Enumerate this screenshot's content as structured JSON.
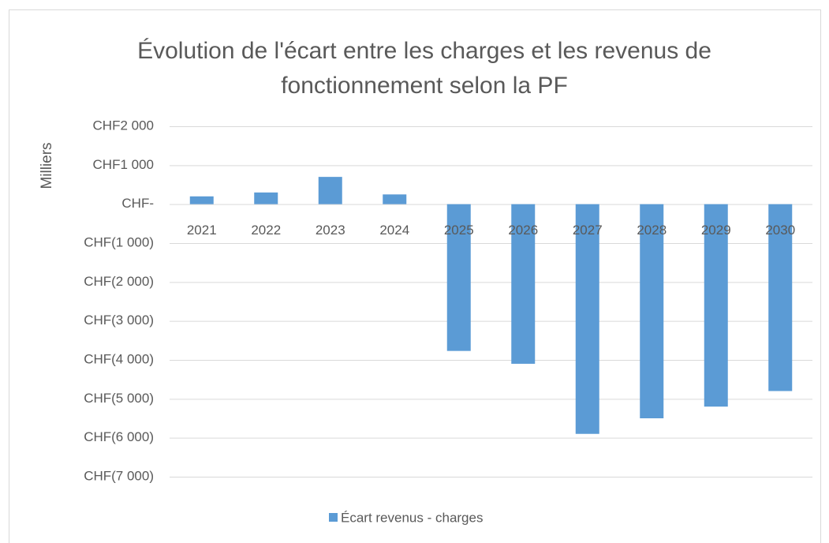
{
  "chart_data": {
    "type": "bar",
    "title": [
      "Évolution de l'écart entre les charges et les revenus de",
      "fonctionnement selon la PF"
    ],
    "y_axis_label": "Milliers",
    "categories": [
      "2021",
      "2022",
      "2023",
      "2024",
      "2025",
      "2026",
      "2027",
      "2028",
      "2029",
      "2030"
    ],
    "series": [
      {
        "name": "Écart revenus - charges",
        "color": "#5b9bd5",
        "values": [
          200,
          300,
          700,
          250,
          -3770,
          -4100,
          -5900,
          -5500,
          -5200,
          -4800
        ]
      }
    ],
    "ylim": [
      -7000,
      2000
    ],
    "yticks": [
      {
        "value": 2000,
        "label": "CHF2 000"
      },
      {
        "value": 1000,
        "label": "CHF1 000"
      },
      {
        "value": 0,
        "label": "CHF-"
      },
      {
        "value": -1000,
        "label": "CHF(1 000)"
      },
      {
        "value": -2000,
        "label": "CHF(2 000)"
      },
      {
        "value": -3000,
        "label": "CHF(3 000)"
      },
      {
        "value": -4000,
        "label": "CHF(4 000)"
      },
      {
        "value": -5000,
        "label": "CHF(5 000)"
      },
      {
        "value": -6000,
        "label": "CHF(6 000)"
      },
      {
        "value": -7000,
        "label": "CHF(7 000)"
      }
    ],
    "grid": true,
    "legend": "bottom"
  }
}
